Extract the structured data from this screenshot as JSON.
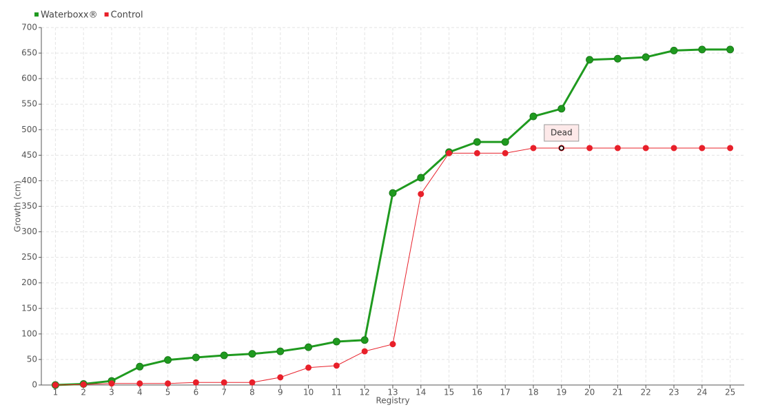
{
  "chart_data": {
    "type": "line",
    "x": [
      1,
      2,
      3,
      4,
      5,
      6,
      7,
      8,
      9,
      10,
      11,
      12,
      13,
      14,
      15,
      16,
      17,
      18,
      19,
      20,
      21,
      22,
      23,
      24,
      25
    ],
    "xlim": [
      0.5,
      25.5
    ],
    "xticks": [
      1,
      2,
      3,
      4,
      5,
      6,
      7,
      8,
      9,
      10,
      11,
      12,
      13,
      14,
      15,
      16,
      17,
      18,
      19,
      20,
      21,
      22,
      23,
      24,
      25
    ],
    "ylim": [
      0,
      700
    ],
    "yticks": [
      0,
      50,
      100,
      150,
      200,
      250,
      300,
      350,
      400,
      450,
      500,
      550,
      600,
      650,
      700
    ],
    "x_label": "Registry",
    "y_label": "Growth (cm)",
    "grid": true,
    "legend": "top-left",
    "series": [
      {
        "name": "Waterboxx®",
        "color": "#1f9a1f",
        "values": [
          0,
          2,
          8,
          36,
          49,
          54,
          58,
          61,
          66,
          74,
          85,
          88,
          376,
          406,
          456,
          476,
          476,
          526,
          541,
          637,
          639,
          642,
          655,
          657,
          657
        ]
      },
      {
        "name": "Control",
        "color": "#e8202a",
        "values": [
          0,
          1,
          3,
          3,
          3,
          5,
          5,
          5,
          15,
          34,
          38,
          66,
          80,
          374,
          454,
          454,
          454,
          464,
          464,
          464,
          464,
          464,
          464,
          464,
          464
        ]
      }
    ],
    "annotations": [
      {
        "text": "Dead",
        "x": 19,
        "y": 464
      }
    ]
  }
}
